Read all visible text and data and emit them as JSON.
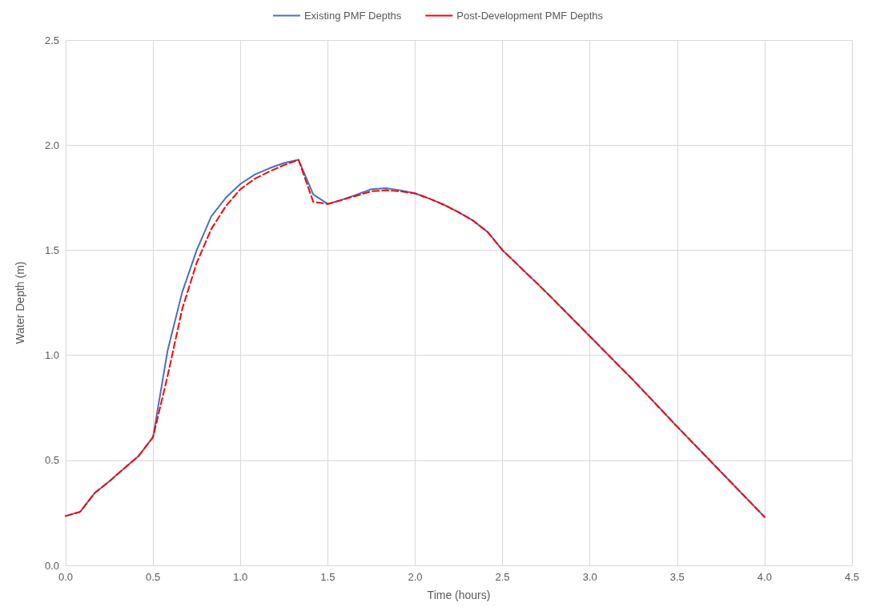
{
  "chart_data": {
    "type": "line",
    "xlabel": "Time (hours)",
    "ylabel": "Water Depth (m)",
    "x": [
      0,
      0.083,
      0.167,
      0.25,
      0.333,
      0.417,
      0.5,
      0.583,
      0.667,
      0.75,
      0.833,
      0.917,
      1.0,
      1.083,
      1.167,
      1.25,
      1.333,
      1.417,
      1.5,
      1.583,
      1.667,
      1.75,
      1.833,
      1.917,
      2.0,
      2.083,
      2.167,
      2.25,
      2.333,
      2.417,
      2.5,
      2.75,
      3.0,
      3.25,
      3.5,
      3.75,
      4.0
    ],
    "series": [
      {
        "name": "Existing PMF Depths",
        "color": "#4472c4",
        "line_style": "solid",
        "values": [
          0.235,
          0.255,
          0.345,
          0.4,
          0.46,
          0.52,
          0.61,
          1.02,
          1.3,
          1.5,
          1.66,
          1.75,
          1.815,
          1.86,
          1.89,
          1.915,
          1.93,
          1.765,
          1.72,
          1.74,
          1.765,
          1.79,
          1.795,
          1.785,
          1.77,
          1.745,
          1.715,
          1.68,
          1.64,
          1.585,
          1.5,
          1.3,
          1.09,
          0.88,
          0.66,
          0.445,
          0.23
        ]
      },
      {
        "name": "Post-Development PMF Depths",
        "color": "#ff0000",
        "line_style": "dashed",
        "values": [
          0.235,
          0.255,
          0.345,
          0.4,
          0.46,
          0.52,
          0.61,
          0.9,
          1.22,
          1.44,
          1.6,
          1.71,
          1.79,
          1.84,
          1.875,
          1.905,
          1.93,
          1.73,
          1.72,
          1.74,
          1.76,
          1.78,
          1.785,
          1.78,
          1.77,
          1.745,
          1.715,
          1.68,
          1.64,
          1.585,
          1.5,
          1.3,
          1.09,
          0.88,
          0.66,
          0.445,
          0.23
        ]
      }
    ],
    "xlim": [
      0,
      4.5
    ],
    "xticks": [
      {
        "value": 0,
        "label": "0.0"
      },
      {
        "value": 0.5,
        "label": "0.5"
      },
      {
        "value": 1,
        "label": "1.0"
      },
      {
        "value": 1.5,
        "label": "1.5"
      },
      {
        "value": 2,
        "label": "2.0"
      },
      {
        "value": 2.5,
        "label": "2.5"
      },
      {
        "value": 3,
        "label": "3.0"
      },
      {
        "value": 3.5,
        "label": "3.5"
      },
      {
        "value": 4,
        "label": "4.0"
      },
      {
        "value": 4.5,
        "label": "4.5"
      }
    ],
    "ylim": [
      0,
      2.5
    ],
    "yticks": [
      {
        "value": 0,
        "label": "0.0"
      },
      {
        "value": 0.5,
        "label": "0.5"
      },
      {
        "value": 1,
        "label": "1.0"
      },
      {
        "value": 1.5,
        "label": "1.5"
      },
      {
        "value": 2,
        "label": "2.0"
      },
      {
        "value": 2.5,
        "label": "2.5"
      }
    ],
    "grid": true,
    "legend": "top",
    "marker": "none"
  }
}
